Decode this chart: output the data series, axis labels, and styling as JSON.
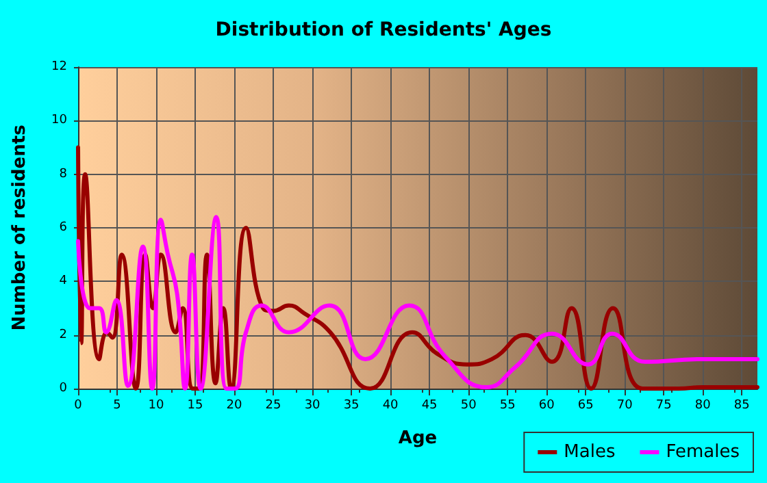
{
  "chart_data": {
    "type": "line",
    "title": "Distribution of Residents' Ages",
    "xlabel": "Age",
    "ylabel": "Number of residents",
    "xlim": [
      0,
      87
    ],
    "xticks": [
      0,
      5,
      10,
      15,
      20,
      25,
      30,
      35,
      40,
      45,
      50,
      55,
      60,
      65,
      70,
      75,
      80,
      85
    ],
    "ylim": [
      0,
      12
    ],
    "yticks": [
      0,
      2,
      4,
      6,
      8,
      10,
      12
    ],
    "grid": true,
    "legend": "bottom right",
    "marker": "none",
    "line_style": "solid",
    "series": [
      {
        "name": "Males",
        "color": "#990000",
        "x": [
          0,
          0.4,
          0.9,
          2.7,
          3.7,
          4.4,
          5.6,
          7.4,
          8.6,
          9.6,
          10.6,
          12.5,
          13.4,
          14.7,
          15.5,
          16.5,
          17.6,
          18.6,
          19.6,
          21.5,
          23.7,
          25,
          27,
          29,
          32.3,
          37.4,
          42.8,
          46,
          49.8,
          53,
          57.3,
          60.7,
          63.2,
          65.7,
          68.5,
          72.3,
          76.9,
          80,
          87
        ],
        "values": [
          9,
          1.7,
          8,
          1.1,
          2.1,
          1.9,
          5,
          0,
          5,
          3,
          5,
          2.1,
          3,
          0,
          0,
          5,
          0.2,
          3,
          0,
          6,
          3,
          2.9,
          3.1,
          2.8,
          2.1,
          0,
          2.1,
          1.3,
          0.9,
          1.1,
          2,
          1,
          3,
          0,
          3,
          0,
          0,
          0.05,
          0.05
        ]
      },
      {
        "name": "Females",
        "color": "#ff00ff",
        "x": [
          0,
          1.5,
          2.7,
          3.6,
          4.9,
          6.4,
          8.3,
          9.5,
          10.6,
          11.5,
          12.7,
          13.7,
          14.6,
          15.7,
          17.7,
          19,
          20.1,
          21.5,
          23.5,
          27,
          32.2,
          36.8,
          42.4,
          47,
          52.3,
          56,
          60.7,
          65.3,
          68.4,
          72.6,
          80,
          87
        ],
        "values": [
          5.5,
          3,
          3,
          2.1,
          3.3,
          0.1,
          5.3,
          0,
          6.3,
          5,
          3.5,
          0,
          5,
          0,
          6.4,
          0,
          0,
          2.1,
          3.1,
          2.1,
          3.1,
          1.1,
          3.1,
          1.2,
          0.05,
          0.8,
          2.05,
          0.9,
          2.05,
          1,
          1.1,
          1.1
        ]
      }
    ]
  }
}
